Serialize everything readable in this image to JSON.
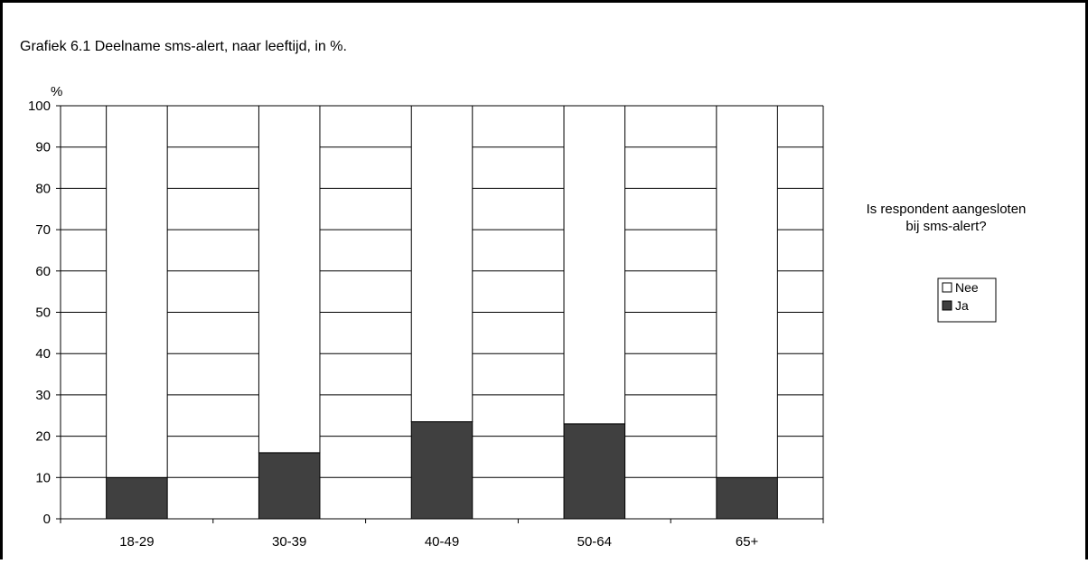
{
  "chart_data": {
    "type": "bar",
    "stacked": true,
    "title": "Grafiek 6.1  Deelname  sms-alert,  naar leeftijd,  in %.",
    "ylabel": "%",
    "xlabel": "",
    "categories": [
      "18-29",
      "30-39",
      "40-49",
      "50-64",
      "65+"
    ],
    "series": [
      {
        "name": "Ja",
        "values": [
          10,
          16,
          23.5,
          23,
          10
        ],
        "color": "#404040"
      },
      {
        "name": "Nee",
        "values": [
          90,
          84,
          76.5,
          77,
          90
        ],
        "color": "#ffffff"
      }
    ],
    "ylim": [
      0,
      100
    ],
    "yticks": [
      0,
      10,
      20,
      30,
      40,
      50,
      60,
      70,
      80,
      90,
      100
    ],
    "grid": true,
    "legend": {
      "title": "Is respondent aangesloten bij sms-alert?",
      "title_lines": [
        "Is respondent aangesloten",
        "bij sms-alert?"
      ],
      "position": "right"
    }
  }
}
